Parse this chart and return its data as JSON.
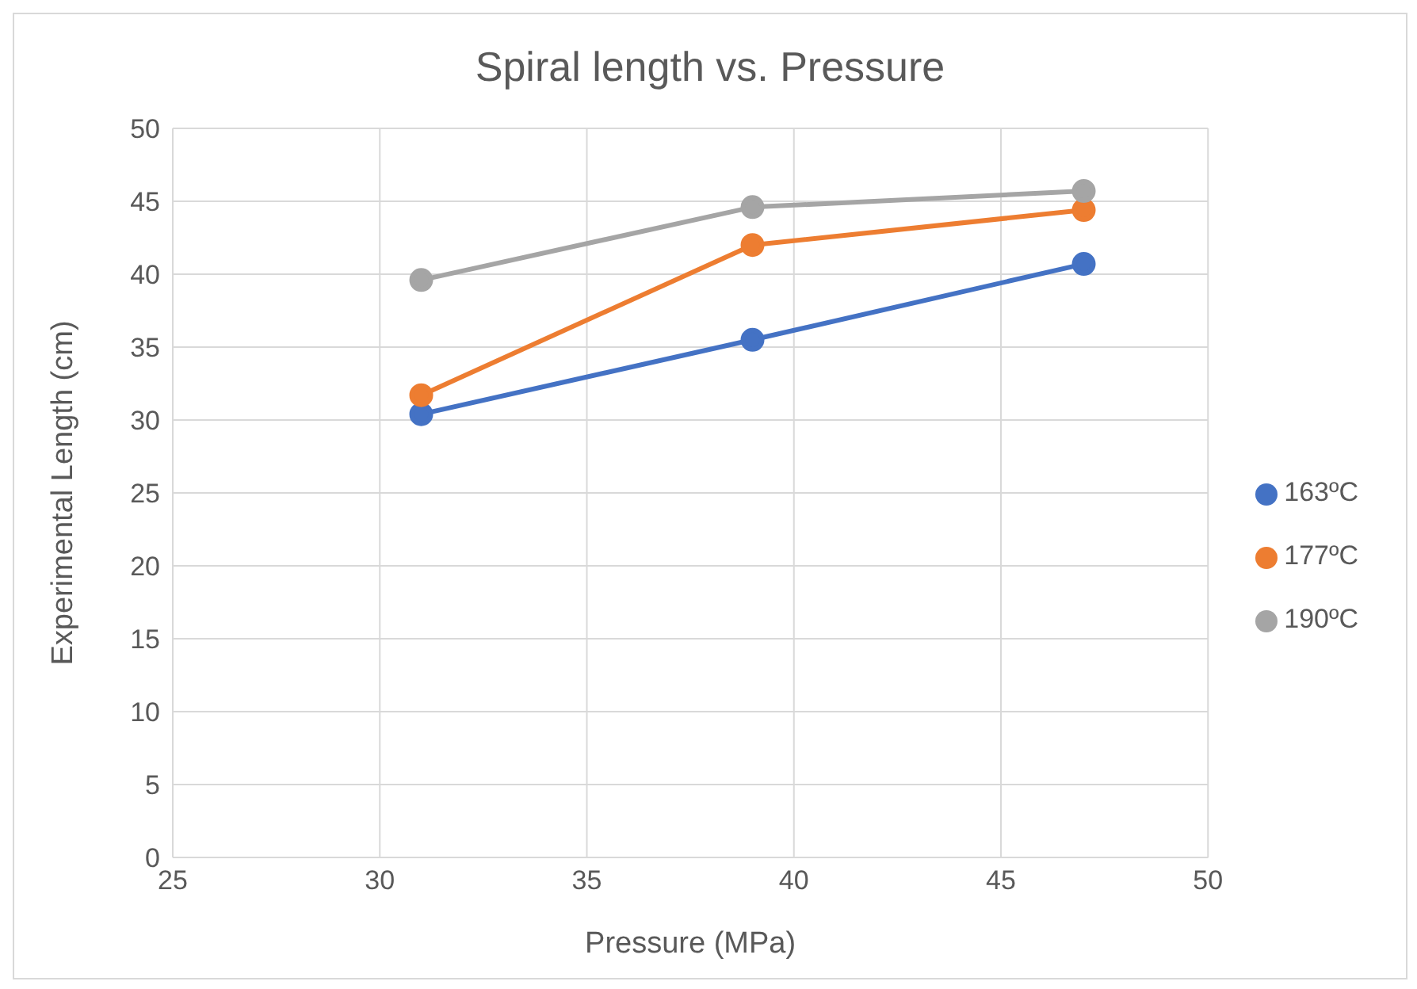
{
  "chart_data": {
    "type": "line",
    "title": "Spiral length vs. Pressure",
    "xlabel": "Pressure (MPa)",
    "ylabel": "Experimental Length (cm)",
    "x": [
      31,
      39,
      47
    ],
    "series": [
      {
        "name": "163ºC",
        "color": "#4472c4",
        "values": [
          30.4,
          35.5,
          40.7
        ]
      },
      {
        "name": "177ºC",
        "color": "#ed7d31",
        "values": [
          31.7,
          42.0,
          44.4
        ]
      },
      {
        "name": "190ºC",
        "color": "#a5a5a5",
        "values": [
          39.6,
          44.6,
          45.7
        ]
      }
    ],
    "xlim": [
      25,
      50
    ],
    "xticks": [
      25,
      30,
      35,
      40,
      45,
      50
    ],
    "ylim": [
      0,
      50
    ],
    "yticks": [
      0,
      5,
      10,
      15,
      20,
      25,
      30,
      35,
      40,
      45,
      50
    ],
    "grid": true,
    "legend": "right",
    "marker": "circle",
    "line_style": "solid"
  }
}
